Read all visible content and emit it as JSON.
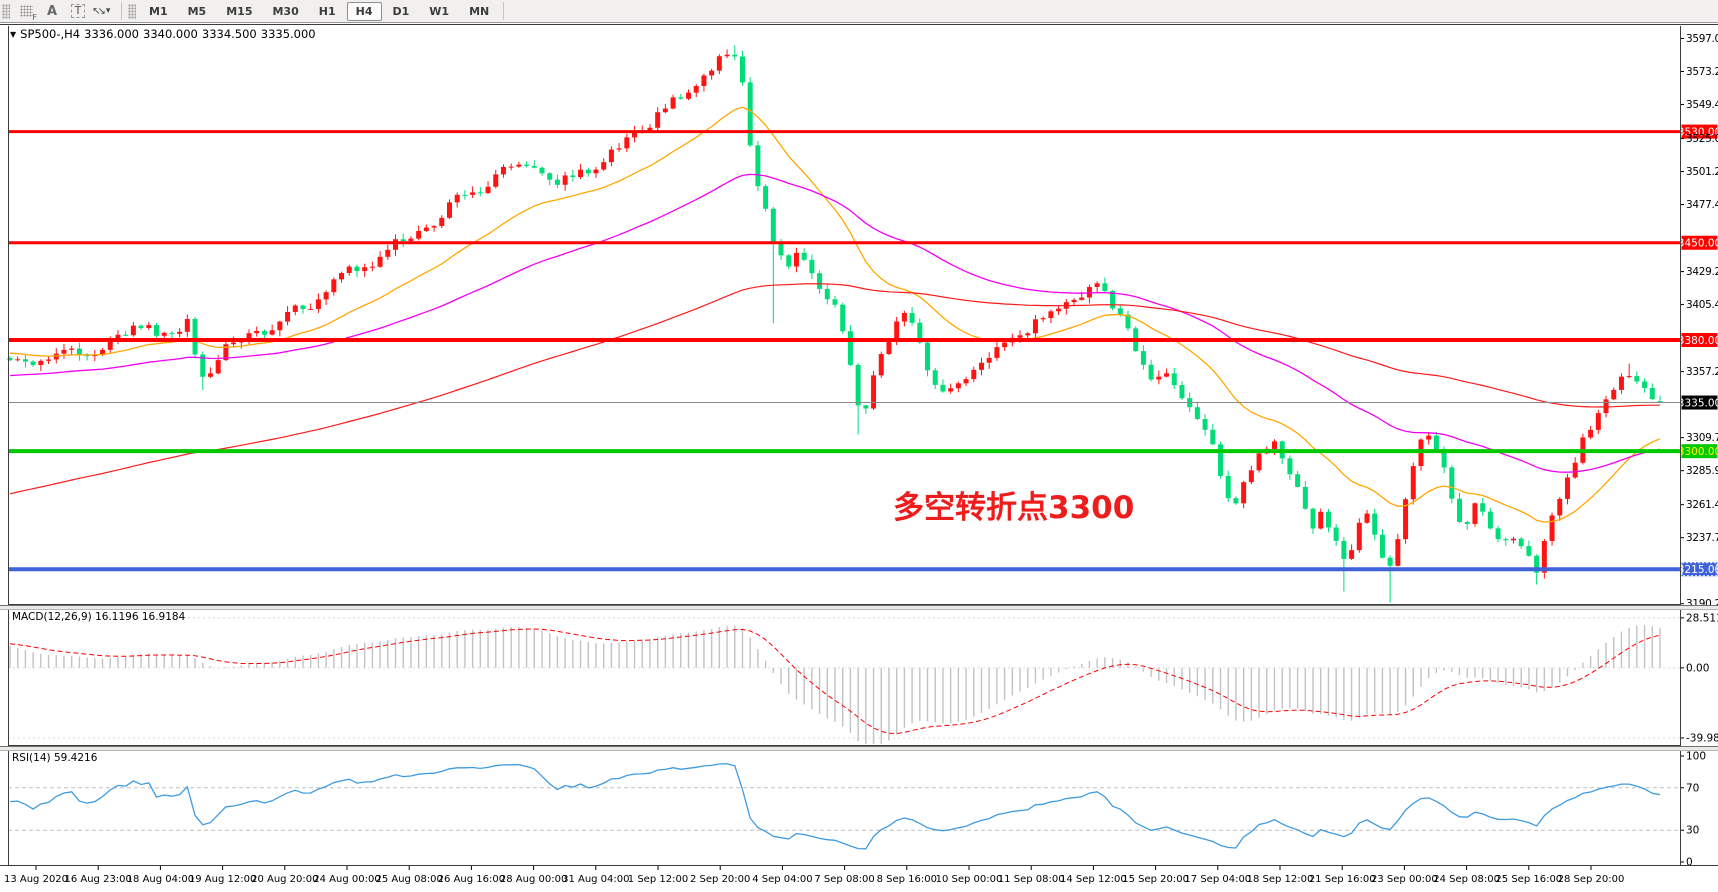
{
  "toolbar": {
    "icons": [
      {
        "name": "grid-f-icon",
        "sub": "F"
      },
      {
        "name": "text-label-icon",
        "glyph": "A"
      },
      {
        "name": "text-box-icon",
        "glyph": "T"
      },
      {
        "name": "diagonal-arrows-icon",
        "glyph": "↖↘"
      }
    ],
    "dropdown_caret": "▾",
    "timeframes": [
      "M1",
      "M5",
      "M15",
      "M30",
      "H1",
      "H4",
      "D1",
      "W1",
      "MN"
    ],
    "active_timeframe": "H4"
  },
  "chart": {
    "quote": {
      "collapse_glyph": "▼",
      "symbol_tf": "SP500-,H4",
      "open": "3336.000",
      "high": "3340.000",
      "low": "3334.500",
      "close": "3335.000"
    },
    "macd": {
      "title": "MACD(12,26,9)",
      "value_main": "16.1196",
      "value_signal": "16.9184"
    },
    "rsi": {
      "title": "RSI(14)",
      "value": "59.4216"
    }
  },
  "annotation": {
    "text": "多空转折点3300",
    "color": "#ef1c1c"
  },
  "chart_data": {
    "type": "candlestick",
    "symbol": "SP500-",
    "timeframe": "H4",
    "bar_count": 215,
    "ylim": [
      3190,
      3606
    ],
    "current_bar": {
      "open": 3336.0,
      "high": 3340.0,
      "low": 3334.5,
      "close": 3335.0
    },
    "price_path": [
      [
        0.0,
        3367
      ],
      [
        0.01,
        3359
      ],
      [
        0.022,
        3368
      ],
      [
        0.035,
        3376
      ],
      [
        0.048,
        3365
      ],
      [
        0.06,
        3378
      ],
      [
        0.072,
        3386
      ],
      [
        0.085,
        3390
      ],
      [
        0.098,
        3384
      ],
      [
        0.108,
        3390
      ],
      [
        0.116,
        3353
      ],
      [
        0.124,
        3366
      ],
      [
        0.132,
        3375
      ],
      [
        0.142,
        3380
      ],
      [
        0.152,
        3386
      ],
      [
        0.163,
        3393
      ],
      [
        0.174,
        3400
      ],
      [
        0.186,
        3410
      ],
      [
        0.198,
        3422
      ],
      [
        0.21,
        3430
      ],
      [
        0.222,
        3440
      ],
      [
        0.234,
        3448
      ],
      [
        0.246,
        3455
      ],
      [
        0.258,
        3466
      ],
      [
        0.27,
        3478
      ],
      [
        0.282,
        3487
      ],
      [
        0.292,
        3496
      ],
      [
        0.302,
        3504
      ],
      [
        0.312,
        3508
      ],
      [
        0.322,
        3500
      ],
      [
        0.332,
        3492
      ],
      [
        0.342,
        3498
      ],
      [
        0.352,
        3505
      ],
      [
        0.362,
        3512
      ],
      [
        0.374,
        3524
      ],
      [
        0.386,
        3536
      ],
      [
        0.398,
        3548
      ],
      [
        0.41,
        3560
      ],
      [
        0.422,
        3572
      ],
      [
        0.432,
        3583
      ],
      [
        0.438,
        3588
      ],
      [
        0.444,
        3570
      ],
      [
        0.45,
        3505
      ],
      [
        0.457,
        3478
      ],
      [
        0.464,
        3442
      ],
      [
        0.472,
        3430
      ],
      [
        0.479,
        3448
      ],
      [
        0.486,
        3428
      ],
      [
        0.494,
        3412
      ],
      [
        0.502,
        3396
      ],
      [
        0.51,
        3358
      ],
      [
        0.516,
        3325
      ],
      [
        0.524,
        3354
      ],
      [
        0.533,
        3380
      ],
      [
        0.541,
        3402
      ],
      [
        0.549,
        3392
      ],
      [
        0.557,
        3352
      ],
      [
        0.563,
        3337
      ],
      [
        0.573,
        3346
      ],
      [
        0.583,
        3356
      ],
      [
        0.594,
        3368
      ],
      [
        0.605,
        3380
      ],
      [
        0.618,
        3390
      ],
      [
        0.632,
        3401
      ],
      [
        0.646,
        3412
      ],
      [
        0.658,
        3420
      ],
      [
        0.668,
        3406
      ],
      [
        0.677,
        3391
      ],
      [
        0.685,
        3362
      ],
      [
        0.693,
        3345
      ],
      [
        0.701,
        3353
      ],
      [
        0.709,
        3346
      ],
      [
        0.717,
        3331
      ],
      [
        0.725,
        3312
      ],
      [
        0.733,
        3287
      ],
      [
        0.741,
        3263
      ],
      [
        0.749,
        3281
      ],
      [
        0.757,
        3297
      ],
      [
        0.765,
        3306
      ],
      [
        0.773,
        3298
      ],
      [
        0.781,
        3271
      ],
      [
        0.789,
        3242
      ],
      [
        0.796,
        3256
      ],
      [
        0.803,
        3236
      ],
      [
        0.809,
        3222
      ],
      [
        0.816,
        3241
      ],
      [
        0.823,
        3255
      ],
      [
        0.829,
        3231
      ],
      [
        0.836,
        3214
      ],
      [
        0.843,
        3252
      ],
      [
        0.851,
        3290
      ],
      [
        0.858,
        3315
      ],
      [
        0.865,
        3298
      ],
      [
        0.872,
        3280
      ],
      [
        0.88,
        3242
      ],
      [
        0.888,
        3258
      ],
      [
        0.896,
        3248
      ],
      [
        0.904,
        3232
      ],
      [
        0.911,
        3242
      ],
      [
        0.918,
        3226
      ],
      [
        0.925,
        3213
      ],
      [
        0.932,
        3247
      ],
      [
        0.94,
        3270
      ],
      [
        0.948,
        3292
      ],
      [
        0.956,
        3311
      ],
      [
        0.964,
        3330
      ],
      [
        0.972,
        3348
      ],
      [
        0.979,
        3357
      ],
      [
        0.986,
        3350
      ],
      [
        0.993,
        3339
      ],
      [
        1.0,
        3335
      ]
    ],
    "wicks": [
      {
        "t": 0.116,
        "low": 3344
      },
      {
        "t": 0.438,
        "high": 3592
      },
      {
        "t": 0.464,
        "low": 3392
      },
      {
        "t": 0.516,
        "low": 3312
      },
      {
        "t": 0.809,
        "low": 3199
      },
      {
        "t": 0.836,
        "low": 3191
      },
      {
        "t": 0.925,
        "low": 3204
      },
      {
        "t": 0.979,
        "high": 3363
      }
    ],
    "colors": {
      "up_candle": "#ff1414",
      "down_candle": "#00dc78",
      "macd_hist": "#c2c2c2",
      "macd_signal": "#ff0000",
      "rsi_line": "#3f9be0",
      "price_line": "#8a8a8a"
    },
    "moving_averages": [
      {
        "name": "ma-fast-orange",
        "period": 22,
        "seed": 3371,
        "color": "#ffa800",
        "width": 1.3
      },
      {
        "name": "ma-mid-magenta",
        "period": 60,
        "seed": 3354,
        "color": "#f400f4",
        "width": 1.3
      },
      {
        "name": "ma-slow-red",
        "period": 150,
        "seed": 3268,
        "color": "#ff1a1a",
        "width": 1.2
      }
    ],
    "levels": [
      {
        "price": 3530.0,
        "label": "3530.00",
        "color": "#ff0000",
        "width": 3,
        "badge_bg": "#ff0000",
        "badge_fg": "#ffffff"
      },
      {
        "price": 3450.0,
        "label": "3450.00",
        "color": "#ff0000",
        "width": 3,
        "badge_bg": "#ff0000",
        "badge_fg": "#ffffff"
      },
      {
        "price": 3380.0,
        "label": "3380.00",
        "color": "#ff0000",
        "width": 4,
        "badge_bg": "#ff0000",
        "badge_fg": "#ffffff"
      },
      {
        "price": 3300.0,
        "label": "3300.00",
        "color": "#00c800",
        "width": 4,
        "badge_bg": "#00c800",
        "badge_fg": "#ffff00"
      },
      {
        "price": 3215.0,
        "label": "3215.00",
        "color": "#3f62d9",
        "width": 4,
        "badge_bg": "#3f62d9",
        "badge_fg": "#ffffff",
        "selected": true
      }
    ],
    "current_price": {
      "price": 3335.0,
      "label": "3335.00",
      "badge_bg": "#000000",
      "badge_fg": "#ffffff"
    },
    "price_axis": [
      {
        "label": "3597.00",
        "price": 3597.0
      },
      {
        "label": "3573.24",
        "price": 3573.24
      },
      {
        "label": "3549.48",
        "price": 3549.48
      },
      {
        "label": "3525.00",
        "price": 3525.0
      },
      {
        "label": "3501.24",
        "price": 3501.24
      },
      {
        "label": "3477.48",
        "price": 3477.48
      },
      {
        "label": "3429.24",
        "price": 3429.24
      },
      {
        "label": "3405.48",
        "price": 3405.48
      },
      {
        "label": "3357.24",
        "price": 3357.24
      },
      {
        "label": "3309.72",
        "price": 3309.72
      },
      {
        "label": "3285.96",
        "price": 3285.96
      },
      {
        "label": "3261.48",
        "price": 3261.48
      },
      {
        "label": "3237.72",
        "price": 3237.72
      },
      {
        "label": "3190.20",
        "price": 3190.2
      }
    ],
    "macd": {
      "params": [
        12,
        26,
        9
      ],
      "axis": [
        {
          "label": "28.5114",
          "value": 28.5114
        },
        {
          "label": "0.00",
          "value": 0
        },
        {
          "label": "-39.9869",
          "value": -39.9869
        }
      ],
      "ylim": [
        -44,
        33
      ]
    },
    "rsi": {
      "period": 14,
      "axis": [
        {
          "label": "100",
          "value": 100,
          "dashed": false
        },
        {
          "label": "70",
          "value": 70,
          "dashed": true
        },
        {
          "label": "30",
          "value": 30,
          "dashed": true
        },
        {
          "label": "0",
          "value": 0,
          "dashed": false
        }
      ]
    },
    "time_axis": [
      "13 Aug 2020",
      "16 Aug 23:00",
      "18 Aug 04:00",
      "19 Aug 12:00",
      "20 Aug 20:00",
      "24 Aug 00:00",
      "25 Aug 08:00",
      "26 Aug 16:00",
      "28 Aug 00:00",
      "31 Aug 04:00",
      "1 Sep 12:00",
      "2 Sep 20:00",
      "4 Sep 04:00",
      "7 Sep 08:00",
      "8 Sep 16:00",
      "10 Sep 00:00",
      "11 Sep 08:00",
      "14 Sep 12:00",
      "15 Sep 20:00",
      "17 Sep 04:00",
      "18 Sep 12:00",
      "21 Sep 16:00",
      "23 Sep 00:00",
      "24 Sep 08:00",
      "25 Sep 16:00",
      "28 Sep 20:00"
    ]
  }
}
